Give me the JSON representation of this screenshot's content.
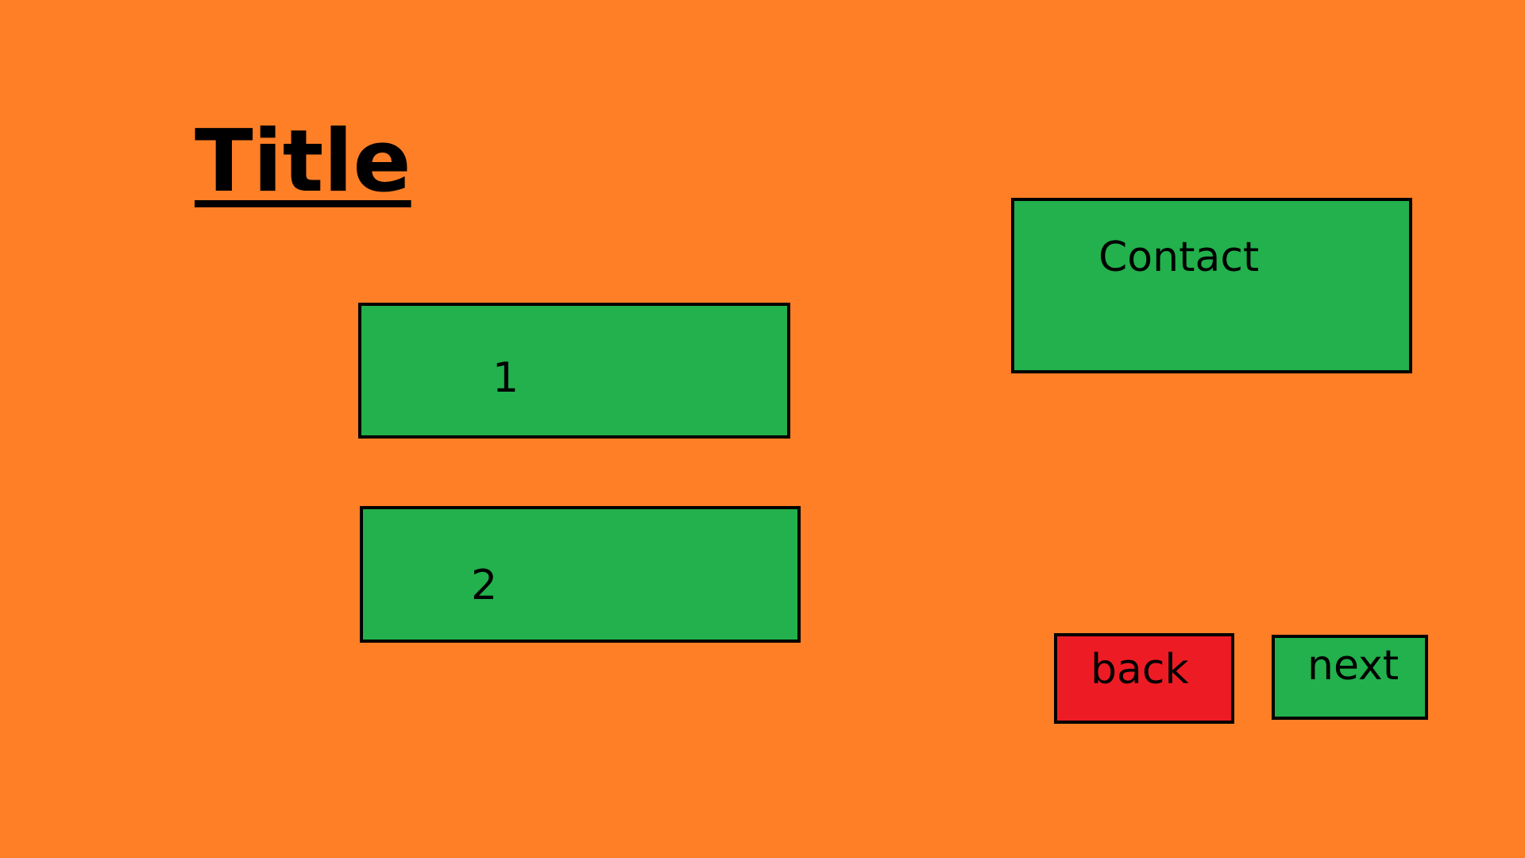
{
  "page": {
    "title": "Title",
    "background_color": "#ff7f27"
  },
  "buttons": {
    "one_label": "1",
    "two_label": "2",
    "contact_label": "Contact",
    "back_label": "back",
    "next_label": "next"
  },
  "colors": {
    "button_green": "#22b14c",
    "back_red": "#ed1c24",
    "border": "#000000"
  }
}
